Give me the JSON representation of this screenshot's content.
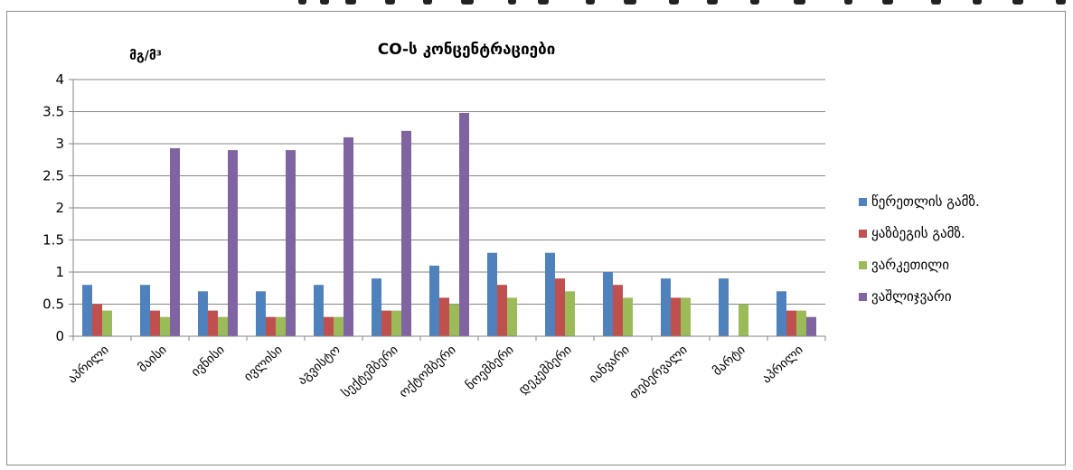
{
  "chart_data": {
    "type": "bar",
    "title": "CO-ს კონცენტრაციები",
    "ylabel": "მგ/მ³",
    "xlabel": "",
    "ylim": [
      0,
      4
    ],
    "yticks": [
      "0",
      "0.5",
      "1",
      "1.5",
      "2",
      "2.5",
      "3",
      "3.5",
      "4"
    ],
    "ytick_values": [
      0,
      0.5,
      1,
      1.5,
      2,
      2.5,
      3,
      3.5,
      4
    ],
    "grid": true,
    "legend_position": "right",
    "categories": [
      "აპრილი",
      "მაისი",
      "ივნისი",
      "ივლისი",
      "აგვისტო",
      "სექტემბერი",
      "ოქტომბერი",
      "ნოემბერი",
      "დეკემბერი",
      "იანვარი",
      "თებერვალი",
      "მარტი",
      "აპრილი"
    ],
    "series": [
      {
        "name": "წერეთლის გამზ.",
        "color": "#4f81bd",
        "values": [
          0.8,
          0.8,
          0.7,
          0.7,
          0.8,
          0.9,
          1.1,
          1.3,
          1.3,
          1.0,
          0.9,
          0.9,
          0.7
        ]
      },
      {
        "name": "ყაზბეგის გამზ.",
        "color": "#c0504d",
        "values": [
          0.5,
          0.4,
          0.4,
          0.3,
          0.3,
          0.4,
          0.6,
          0.8,
          0.9,
          0.8,
          0.6,
          0,
          0.4
        ]
      },
      {
        "name": "ვარკეთილი",
        "color": "#9bbb59",
        "values": [
          0.4,
          0.3,
          0.3,
          0.3,
          0.3,
          0.4,
          0.5,
          0.6,
          0.7,
          0.6,
          0.6,
          0.5,
          0.4
        ]
      },
      {
        "name": "ვაშლიჯვარი",
        "color": "#8064a2",
        "values": [
          0,
          2.93,
          2.9,
          2.9,
          3.1,
          3.2,
          3.48,
          0,
          0,
          0,
          0,
          0,
          0.3
        ]
      }
    ]
  }
}
